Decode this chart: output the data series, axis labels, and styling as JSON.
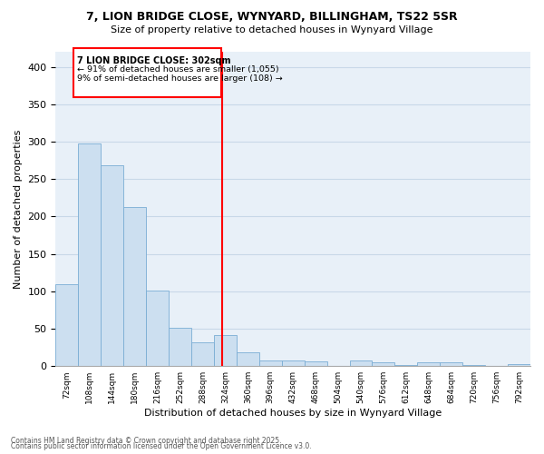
{
  "title_line1": "7, LION BRIDGE CLOSE, WYNYARD, BILLINGHAM, TS22 5SR",
  "title_line2": "Size of property relative to detached houses in Wynyard Village",
  "xlabel": "Distribution of detached houses by size in Wynyard Village",
  "ylabel": "Number of detached properties",
  "bar_color": "#ccdff0",
  "bar_edge_color": "#7aadd4",
  "grid_color": "#c8d8e8",
  "background_color": "#e8f0f8",
  "categories": [
    "72sqm",
    "108sqm",
    "144sqm",
    "180sqm",
    "216sqm",
    "252sqm",
    "288sqm",
    "324sqm",
    "360sqm",
    "396sqm",
    "432sqm",
    "468sqm",
    "504sqm",
    "540sqm",
    "576sqm",
    "612sqm",
    "648sqm",
    "684sqm",
    "720sqm",
    "756sqm",
    "792sqm"
  ],
  "values": [
    110,
    298,
    269,
    213,
    101,
    51,
    32,
    41,
    18,
    7,
    7,
    6,
    0,
    7,
    5,
    1,
    5,
    5,
    1,
    0,
    3
  ],
  "ylim": [
    0,
    420
  ],
  "yticks": [
    0,
    50,
    100,
    150,
    200,
    250,
    300,
    350,
    400
  ],
  "property_label": "7 LION BRIDGE CLOSE: 302sqm",
  "annotation_line1": "← 91% of detached houses are smaller (1,055)",
  "annotation_line2": "9% of semi-detached houses are larger (108) →",
  "vline_x_index": 6.88,
  "footer_line1": "Contains HM Land Registry data © Crown copyright and database right 2025.",
  "footer_line2": "Contains public sector information licensed under the Open Government Licence v3.0."
}
